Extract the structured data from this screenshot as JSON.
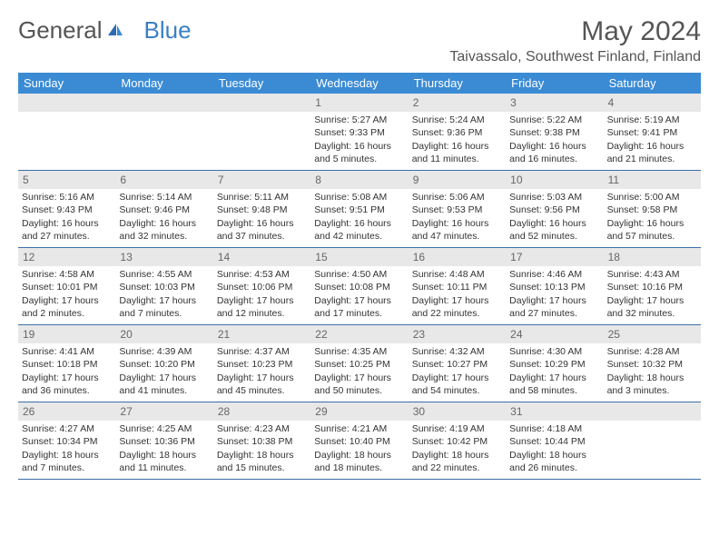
{
  "logo": {
    "text_gray": "General",
    "text_blue": "Blue"
  },
  "header": {
    "month_title": "May 2024",
    "location": "Taivassalo, Southwest Finland, Finland"
  },
  "colors": {
    "header_bg": "#3b8bd4",
    "header_text": "#ffffff",
    "daynum_bg": "#e8e8e8",
    "daynum_text": "#666666",
    "border": "#3b6fa8",
    "body_text": "#333333"
  },
  "weekdays": [
    "Sunday",
    "Monday",
    "Tuesday",
    "Wednesday",
    "Thursday",
    "Friday",
    "Saturday"
  ],
  "weeks": [
    [
      null,
      null,
      null,
      {
        "n": "1",
        "sunrise": "5:27 AM",
        "sunset": "9:33 PM",
        "daylight": "16 hours and 5 minutes."
      },
      {
        "n": "2",
        "sunrise": "5:24 AM",
        "sunset": "9:36 PM",
        "daylight": "16 hours and 11 minutes."
      },
      {
        "n": "3",
        "sunrise": "5:22 AM",
        "sunset": "9:38 PM",
        "daylight": "16 hours and 16 minutes."
      },
      {
        "n": "4",
        "sunrise": "5:19 AM",
        "sunset": "9:41 PM",
        "daylight": "16 hours and 21 minutes."
      }
    ],
    [
      {
        "n": "5",
        "sunrise": "5:16 AM",
        "sunset": "9:43 PM",
        "daylight": "16 hours and 27 minutes."
      },
      {
        "n": "6",
        "sunrise": "5:14 AM",
        "sunset": "9:46 PM",
        "daylight": "16 hours and 32 minutes."
      },
      {
        "n": "7",
        "sunrise": "5:11 AM",
        "sunset": "9:48 PM",
        "daylight": "16 hours and 37 minutes."
      },
      {
        "n": "8",
        "sunrise": "5:08 AM",
        "sunset": "9:51 PM",
        "daylight": "16 hours and 42 minutes."
      },
      {
        "n": "9",
        "sunrise": "5:06 AM",
        "sunset": "9:53 PM",
        "daylight": "16 hours and 47 minutes."
      },
      {
        "n": "10",
        "sunrise": "5:03 AM",
        "sunset": "9:56 PM",
        "daylight": "16 hours and 52 minutes."
      },
      {
        "n": "11",
        "sunrise": "5:00 AM",
        "sunset": "9:58 PM",
        "daylight": "16 hours and 57 minutes."
      }
    ],
    [
      {
        "n": "12",
        "sunrise": "4:58 AM",
        "sunset": "10:01 PM",
        "daylight": "17 hours and 2 minutes."
      },
      {
        "n": "13",
        "sunrise": "4:55 AM",
        "sunset": "10:03 PM",
        "daylight": "17 hours and 7 minutes."
      },
      {
        "n": "14",
        "sunrise": "4:53 AM",
        "sunset": "10:06 PM",
        "daylight": "17 hours and 12 minutes."
      },
      {
        "n": "15",
        "sunrise": "4:50 AM",
        "sunset": "10:08 PM",
        "daylight": "17 hours and 17 minutes."
      },
      {
        "n": "16",
        "sunrise": "4:48 AM",
        "sunset": "10:11 PM",
        "daylight": "17 hours and 22 minutes."
      },
      {
        "n": "17",
        "sunrise": "4:46 AM",
        "sunset": "10:13 PM",
        "daylight": "17 hours and 27 minutes."
      },
      {
        "n": "18",
        "sunrise": "4:43 AM",
        "sunset": "10:16 PM",
        "daylight": "17 hours and 32 minutes."
      }
    ],
    [
      {
        "n": "19",
        "sunrise": "4:41 AM",
        "sunset": "10:18 PM",
        "daylight": "17 hours and 36 minutes."
      },
      {
        "n": "20",
        "sunrise": "4:39 AM",
        "sunset": "10:20 PM",
        "daylight": "17 hours and 41 minutes."
      },
      {
        "n": "21",
        "sunrise": "4:37 AM",
        "sunset": "10:23 PM",
        "daylight": "17 hours and 45 minutes."
      },
      {
        "n": "22",
        "sunrise": "4:35 AM",
        "sunset": "10:25 PM",
        "daylight": "17 hours and 50 minutes."
      },
      {
        "n": "23",
        "sunrise": "4:32 AM",
        "sunset": "10:27 PM",
        "daylight": "17 hours and 54 minutes."
      },
      {
        "n": "24",
        "sunrise": "4:30 AM",
        "sunset": "10:29 PM",
        "daylight": "17 hours and 58 minutes."
      },
      {
        "n": "25",
        "sunrise": "4:28 AM",
        "sunset": "10:32 PM",
        "daylight": "18 hours and 3 minutes."
      }
    ],
    [
      {
        "n": "26",
        "sunrise": "4:27 AM",
        "sunset": "10:34 PM",
        "daylight": "18 hours and 7 minutes."
      },
      {
        "n": "27",
        "sunrise": "4:25 AM",
        "sunset": "10:36 PM",
        "daylight": "18 hours and 11 minutes."
      },
      {
        "n": "28",
        "sunrise": "4:23 AM",
        "sunset": "10:38 PM",
        "daylight": "18 hours and 15 minutes."
      },
      {
        "n": "29",
        "sunrise": "4:21 AM",
        "sunset": "10:40 PM",
        "daylight": "18 hours and 18 minutes."
      },
      {
        "n": "30",
        "sunrise": "4:19 AM",
        "sunset": "10:42 PM",
        "daylight": "18 hours and 22 minutes."
      },
      {
        "n": "31",
        "sunrise": "4:18 AM",
        "sunset": "10:44 PM",
        "daylight": "18 hours and 26 minutes."
      },
      null
    ]
  ],
  "labels": {
    "sunrise": "Sunrise:",
    "sunset": "Sunset:",
    "daylight": "Daylight:"
  }
}
